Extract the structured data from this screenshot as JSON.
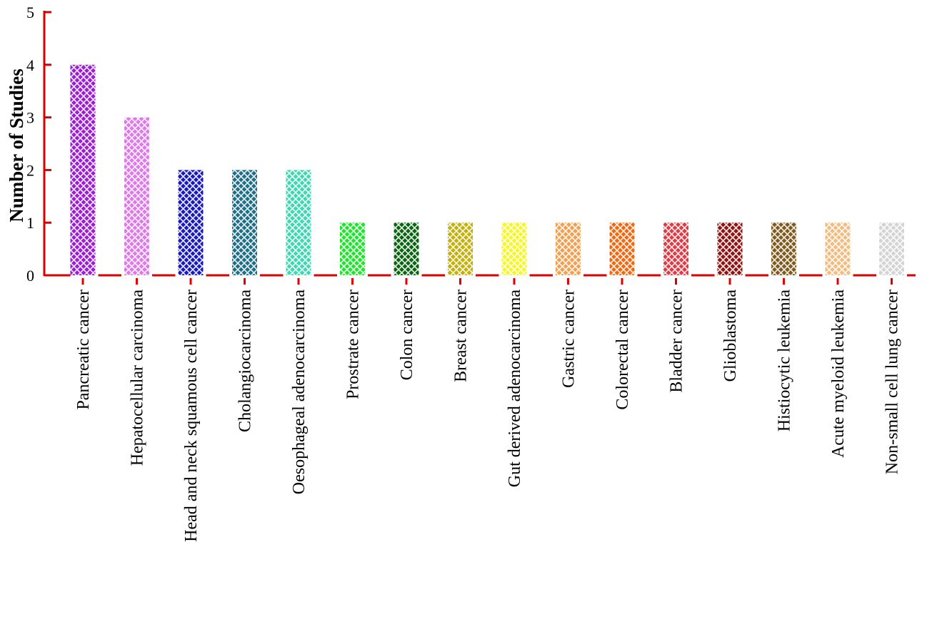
{
  "chart_data": {
    "type": "bar",
    "title": "",
    "xlabel": "",
    "ylabel": "Number of Studies",
    "ylim": [
      0,
      5
    ],
    "yticks": [
      0,
      1,
      2,
      3,
      4,
      5
    ],
    "grid": false,
    "legend": "none",
    "axis_color": "#dd0000",
    "categories": [
      "Pancreatic cancer",
      "Hepatocellular carcinoma",
      "Head and neck squamous cell cancer",
      "Cholangiocarcinoma",
      "Oesophageal adenocarcinoma",
      "Prostrate cancer",
      "Colon cancer",
      "Breast cancer",
      "Gut derived adenocarcinoma",
      "Gastric cancer",
      "Colorectal cancer",
      "Bladder cancer",
      "Glioblastoma",
      "Histiocytic leukemia",
      "Acute myeloid leukemia",
      "Non-small cell lung cancer"
    ],
    "values": [
      4,
      3,
      2,
      2,
      2,
      1,
      1,
      1,
      1,
      1,
      1,
      1,
      1,
      1,
      1,
      1
    ],
    "colors": [
      "#9a1fd0",
      "#dd7ae8",
      "#1a1ab8",
      "#1e6e88",
      "#3fd6b3",
      "#22e22e",
      "#0a6410",
      "#c2b00c",
      "#f6f624",
      "#f0a050",
      "#ee6a12",
      "#dc3c46",
      "#8e1414",
      "#7e5a1e",
      "#f0bc80",
      "#d4d4d4"
    ]
  }
}
